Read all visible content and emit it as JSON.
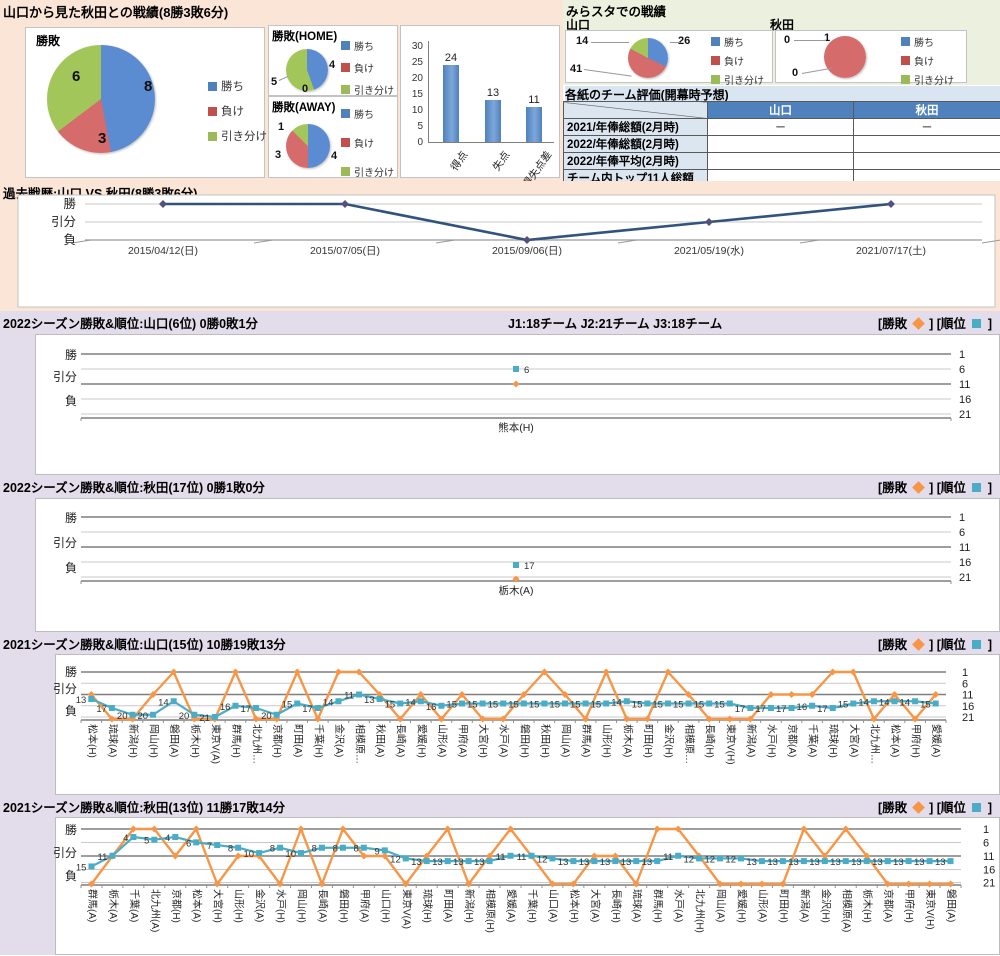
{
  "colors": {
    "peach_bg": "#FBE5D6",
    "green_bg": "#EBF1DE",
    "lavender_bg": "#E2DCEB",
    "win_blue": "#5B8BD0",
    "lose_red": "#D56B6B",
    "draw_green": "#A3C65A",
    "legend_blue": "#4F81BD",
    "legend_red": "#C0504D",
    "legend_green": "#9BBB59",
    "bar_blue": "#4F81BD",
    "orange": "#F79646",
    "teal": "#4BACC6",
    "history_line": "#31537C",
    "history_marker": "#55517E",
    "table_header": "#4F81BD",
    "table_label_bg": "#DCE6F1",
    "table_title_bg": "#DAE5F2",
    "grid_light": "#C9C9C9",
    "grid_dark": "#7F7F7F"
  },
  "texts": {
    "main_title": "山口から見た秋田との戦績(8勝3敗6分)",
    "mirasuta_title": "みらスタでの戦績",
    "table_title": "各紙のチーム評価(開幕時予想)",
    "history_title": "過去戦歴:山口 VS 秋田(8勝3敗6分)",
    "result_legend": {
      "win": "勝ち",
      "lose": "負け",
      "draw": "引き分け"
    },
    "season_legend": {
      "win_open": "[勝敗",
      "rank_open": "] [順位",
      "close": "]"
    },
    "wdl_labels": [
      "勝",
      "引分",
      "負"
    ]
  },
  "chart_data": [
    {
      "type": "pie",
      "title": "勝敗",
      "labels": [
        "勝ち",
        "負け",
        "引き分け"
      ],
      "values": [
        8,
        3,
        6
      ]
    },
    {
      "type": "pie",
      "title": "勝敗(HOME)",
      "labels": [
        "勝ち",
        "負け",
        "引き分け"
      ],
      "values": [
        4,
        0,
        5
      ]
    },
    {
      "type": "pie",
      "title": "勝敗(AWAY)",
      "labels": [
        "勝ち",
        "負け",
        "引き分け"
      ],
      "values": [
        4,
        3,
        1
      ]
    },
    {
      "type": "bar",
      "categories": [
        "得点",
        "失点",
        "得失点差"
      ],
      "values": [
        24,
        13,
        11
      ],
      "y_ticks": [
        0,
        5,
        10,
        15,
        20,
        25,
        30
      ],
      "ylim": [
        0,
        30
      ]
    },
    {
      "type": "pie",
      "title": "山口",
      "labels": [
        "勝ち",
        "負け",
        "引き分け"
      ],
      "values": [
        26,
        41,
        14
      ]
    },
    {
      "type": "pie",
      "title": "秋田",
      "labels": [
        "勝ち",
        "負け",
        "引き分け"
      ],
      "values": [
        0,
        1,
        0
      ]
    },
    {
      "type": "line",
      "title": "過去戦歴:山口 VS 秋田(8勝3敗6分)",
      "y_categories": [
        "勝",
        "引分",
        "負"
      ],
      "points": [
        {
          "date": "2015/04/12(日)",
          "result": "W"
        },
        {
          "date": "2015/07/05(日)",
          "result": "W"
        },
        {
          "date": "2015/09/06(日)",
          "result": "L"
        },
        {
          "date": "2021/05/19(水)",
          "result": "D"
        },
        {
          "date": "2021/07/17(土)",
          "result": "W"
        }
      ]
    },
    {
      "type": "line",
      "header": "2022シーズン勝敗&順位:山口(6位) 0勝0敗1分",
      "note": "J1:18チーム  J2:21チーム  J3:18チーム",
      "right_axis": [
        1,
        6,
        11,
        16,
        21
      ],
      "matches": [
        {
          "label": "熊本(H)",
          "rank": 6,
          "result": "D"
        }
      ]
    },
    {
      "type": "line",
      "header": "2022シーズン勝敗&順位:秋田(17位) 0勝1敗0分",
      "note": "",
      "right_axis": [
        1,
        6,
        11,
        16,
        21
      ],
      "matches": [
        {
          "label": "栃木(A)",
          "rank": 17,
          "result": "L"
        }
      ]
    },
    {
      "type": "line",
      "header": "2021シーズン勝敗&順位:山口(15位) 10勝19敗13分",
      "note": "",
      "right_axis": [
        1,
        6,
        11,
        16,
        21
      ],
      "matches": [
        {
          "label": "松本(H)",
          "rank": 13,
          "result": "D"
        },
        {
          "label": "琉球(A)",
          "rank": 17,
          "result": "L"
        },
        {
          "label": "新潟(H)",
          "rank": 20,
          "result": "L"
        },
        {
          "label": "岡山(H)",
          "rank": 20,
          "result": "D"
        },
        {
          "label": "磐田(A)",
          "rank": 14,
          "result": "W"
        },
        {
          "label": "栃木(H)",
          "rank": 20,
          "result": "L"
        },
        {
          "label": "東京V(A)",
          "rank": 21,
          "result": "L"
        },
        {
          "label": "群馬(H)",
          "rank": 16,
          "result": "W"
        },
        {
          "label": "北九州…",
          "rank": 17,
          "result": "L"
        },
        {
          "label": "京都(H)",
          "rank": 20,
          "result": "L"
        },
        {
          "label": "町田(A)",
          "rank": 15,
          "result": "W"
        },
        {
          "label": "千葉(H)",
          "rank": 17,
          "result": "L"
        },
        {
          "label": "金沢(A)",
          "rank": 14,
          "result": "W"
        },
        {
          "label": "相模原…",
          "rank": 11,
          "result": "W"
        },
        {
          "label": "秋田(A)",
          "rank": 13,
          "result": "D"
        },
        {
          "label": "長崎(A)",
          "rank": 15,
          "result": "L"
        },
        {
          "label": "愛媛(H)",
          "rank": 14,
          "result": "D"
        },
        {
          "label": "山形(A)",
          "rank": 16,
          "result": "L"
        },
        {
          "label": "甲府(A)",
          "rank": 15,
          "result": "D"
        },
        {
          "label": "大宮(H)",
          "rank": 15,
          "result": "L"
        },
        {
          "label": "水戸(A)",
          "rank": 15,
          "result": "L"
        },
        {
          "label": "磐田(H)",
          "rank": 15,
          "result": "D"
        },
        {
          "label": "秋田(H)",
          "rank": 15,
          "result": "W"
        },
        {
          "label": "岡山(A)",
          "rank": 15,
          "result": "D"
        },
        {
          "label": "群馬(A)",
          "rank": 15,
          "result": "L"
        },
        {
          "label": "山形(H)",
          "rank": 15,
          "result": "W"
        },
        {
          "label": "栃木(A)",
          "rank": 14,
          "result": "L"
        },
        {
          "label": "町田(H)",
          "rank": 15,
          "result": "L"
        },
        {
          "label": "金沢(H)",
          "rank": 15,
          "result": "W"
        },
        {
          "label": "相模原…",
          "rank": 15,
          "result": "D"
        },
        {
          "label": "長崎(H)",
          "rank": 15,
          "result": "L"
        },
        {
          "label": "東京V(H)",
          "rank": 15,
          "result": "L"
        },
        {
          "label": "新潟(A)",
          "rank": 17,
          "result": "L"
        },
        {
          "label": "水戸(H)",
          "rank": 17,
          "result": "D"
        },
        {
          "label": "京都(A)",
          "rank": 17,
          "result": "D"
        },
        {
          "label": "千葉(A)",
          "rank": 16,
          "result": "D"
        },
        {
          "label": "琉球(H)",
          "rank": 17,
          "result": "W"
        },
        {
          "label": "大宮(A)",
          "rank": 15,
          "result": "W"
        },
        {
          "label": "北九州…",
          "rank": 14,
          "result": "L"
        },
        {
          "label": "松本(A)",
          "rank": 14,
          "result": "D"
        },
        {
          "label": "甲府(H)",
          "rank": 14,
          "result": "L"
        },
        {
          "label": "愛媛(A)",
          "rank": 15,
          "result": "D"
        }
      ]
    },
    {
      "type": "line",
      "header": "2021シーズン勝敗&順位:秋田(13位) 11勝17敗14分",
      "note": "",
      "right_axis": [
        1,
        6,
        11,
        16,
        21
      ],
      "matches": [
        {
          "label": "群馬(A)",
          "rank": 15,
          "result": "L"
        },
        {
          "label": "栃木(A)",
          "rank": 11,
          "result": "D"
        },
        {
          "label": "千葉(A)",
          "rank": 4,
          "result": "W"
        },
        {
          "label": "北九州(A)",
          "rank": 5,
          "result": "W"
        },
        {
          "label": "京都(H)",
          "rank": 4,
          "result": "D"
        },
        {
          "label": "松本(A)",
          "rank": 6,
          "result": "W"
        },
        {
          "label": "大宮(H)",
          "rank": 7,
          "result": "L"
        },
        {
          "label": "山形(H)",
          "rank": 8,
          "result": "D"
        },
        {
          "label": "金沢(A)",
          "rank": 10,
          "result": "D"
        },
        {
          "label": "水戸(H)",
          "rank": 8,
          "result": "L"
        },
        {
          "label": "岡山(H)",
          "rank": 10,
          "result": "W"
        },
        {
          "label": "長崎(A)",
          "rank": 8,
          "result": "L"
        },
        {
          "label": "磐田(H)",
          "rank": 8,
          "result": "W"
        },
        {
          "label": "甲府(A)",
          "rank": 8,
          "result": "D"
        },
        {
          "label": "山口(H)",
          "rank": 9,
          "result": "D"
        },
        {
          "label": "東京V(A)",
          "rank": 12,
          "result": "L"
        },
        {
          "label": "琉球(H)",
          "rank": 13,
          "result": "D"
        },
        {
          "label": "町田(A)",
          "rank": 13,
          "result": "W"
        },
        {
          "label": "新潟(H)",
          "rank": 13,
          "result": "L"
        },
        {
          "label": "相模原(H)",
          "rank": 13,
          "result": "D"
        },
        {
          "label": "愛媛(A)",
          "rank": 11,
          "result": "W"
        },
        {
          "label": "千葉(H)",
          "rank": 11,
          "result": "D"
        },
        {
          "label": "山口(A)",
          "rank": 12,
          "result": "L"
        },
        {
          "label": "松本(H)",
          "rank": 13,
          "result": "L"
        },
        {
          "label": "大宮(A)",
          "rank": 13,
          "result": "D"
        },
        {
          "label": "長崎(H)",
          "rank": 13,
          "result": "D"
        },
        {
          "label": "琉球(A)",
          "rank": 13,
          "result": "L"
        },
        {
          "label": "群馬(H)",
          "rank": 13,
          "result": "W"
        },
        {
          "label": "水戸(A)",
          "rank": 11,
          "result": "W"
        },
        {
          "label": "北九州(H)",
          "rank": 12,
          "result": "D"
        },
        {
          "label": "岡山(A)",
          "rank": 12,
          "result": "L"
        },
        {
          "label": "愛媛(H)",
          "rank": 12,
          "result": "L"
        },
        {
          "label": "山形(A)",
          "rank": 13,
          "result": "L"
        },
        {
          "label": "町田(H)",
          "rank": 13,
          "result": "L"
        },
        {
          "label": "新潟(A)",
          "rank": 13,
          "result": "W"
        },
        {
          "label": "金沢(H)",
          "rank": 13,
          "result": "D"
        },
        {
          "label": "相模原(A)",
          "rank": 13,
          "result": "W"
        },
        {
          "label": "栃木(H)",
          "rank": 13,
          "result": "D"
        },
        {
          "label": "京都(A)",
          "rank": 13,
          "result": "L"
        },
        {
          "label": "甲府(H)",
          "rank": 13,
          "result": "L"
        },
        {
          "label": "東京V(H)",
          "rank": 13,
          "result": "L"
        },
        {
          "label": "磐田(A)",
          "rank": 13,
          "result": "L"
        }
      ]
    }
  ]
}
